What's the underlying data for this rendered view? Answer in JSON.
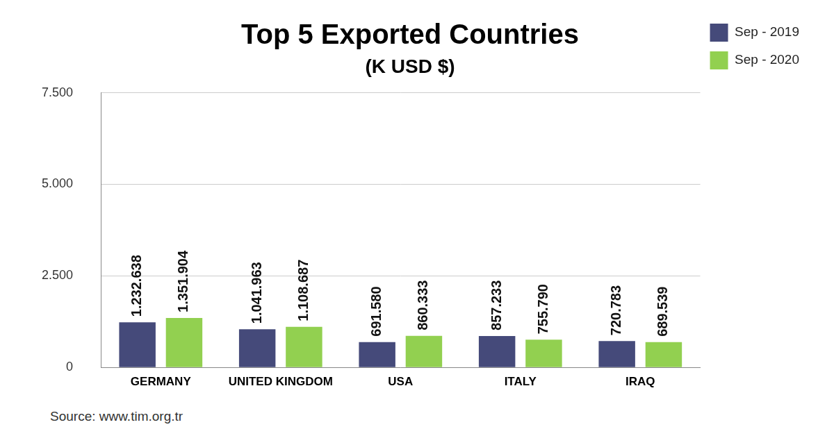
{
  "chart_data": {
    "type": "bar",
    "title": "Top 5 Exported Countries",
    "subtitle": "(K USD $)",
    "source": "Source: www.tim.org.tr",
    "categories": [
      "GERMANY",
      "UNITED KINGDOM",
      "USA",
      "ITALY",
      "IRAQ"
    ],
    "series": [
      {
        "name": "Sep - 2019",
        "color": "#454a7a",
        "values": [
          1232.638,
          1041.963,
          691.58,
          857.233,
          720.783
        ],
        "value_labels": [
          "1.232.638",
          "1.041.963",
          "691.580",
          "857.233",
          "720.783"
        ]
      },
      {
        "name": "Sep - 2020",
        "color": "#92d050",
        "values": [
          1351.904,
          1108.687,
          860.333,
          755.79,
          689.539
        ],
        "value_labels": [
          "1.351.904",
          "1.108.687",
          "860.333",
          "755.790",
          "689.539"
        ]
      }
    ],
    "ylim": [
      0,
      7500
    ],
    "yticks": [
      0,
      {
        "value": 2500,
        "label": "2.500"
      },
      {
        "value": 5000,
        "label": "5.000"
      },
      {
        "value": 7500,
        "label": "7.500"
      }
    ],
    "grid": true,
    "legend": "right",
    "data_labels": true
  }
}
